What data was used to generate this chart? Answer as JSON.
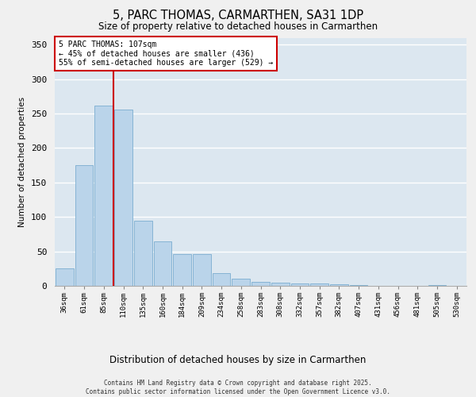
{
  "title_line1": "5, PARC THOMAS, CARMARTHEN, SA31 1DP",
  "title_line2": "Size of property relative to detached houses in Carmarthen",
  "xlabel": "Distribution of detached houses by size in Carmarthen",
  "ylabel": "Number of detached properties",
  "categories": [
    "36sqm",
    "61sqm",
    "85sqm",
    "110sqm",
    "135sqm",
    "160sqm",
    "184sqm",
    "209sqm",
    "234sqm",
    "258sqm",
    "283sqm",
    "308sqm",
    "332sqm",
    "357sqm",
    "382sqm",
    "407sqm",
    "431sqm",
    "456sqm",
    "481sqm",
    "505sqm",
    "530sqm"
  ],
  "values": [
    25,
    175,
    262,
    256,
    94,
    64,
    46,
    46,
    19,
    10,
    6,
    5,
    3,
    3,
    2,
    1,
    0,
    0,
    0,
    1,
    0
  ],
  "bar_color": "#bad4ea",
  "bar_edge_color": "#7aadd0",
  "vline_index": 2.5,
  "vline_color": "#cc0000",
  "annotation_text": "5 PARC THOMAS: 107sqm\n← 45% of detached houses are smaller (436)\n55% of semi-detached houses are larger (529) →",
  "annotation_box_color": "#cc0000",
  "ylim": [
    0,
    360
  ],
  "yticks": [
    0,
    50,
    100,
    150,
    200,
    250,
    300,
    350
  ],
  "background_color": "#dce7f0",
  "grid_color": "#ffffff",
  "footer_line1": "Contains HM Land Registry data © Crown copyright and database right 2025.",
  "footer_line2": "Contains public sector information licensed under the Open Government Licence v3.0."
}
